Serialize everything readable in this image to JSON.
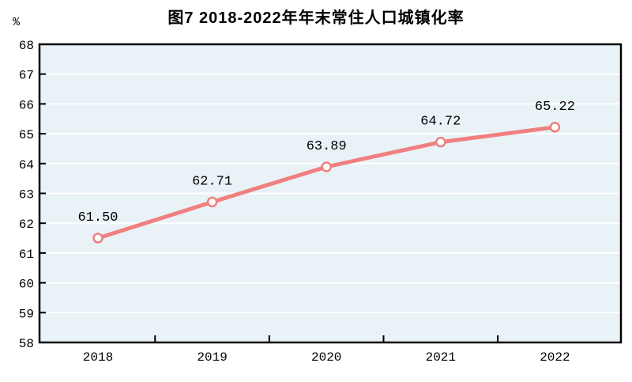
{
  "chart_data": {
    "type": "line",
    "title": "图7  2018-2022年年末常住人口城镇化率",
    "ylabel": "%",
    "xlabel": "",
    "categories": [
      "2018",
      "2019",
      "2020",
      "2021",
      "2022"
    ],
    "series": [
      {
        "name": "年末常住人口城镇化率",
        "values": [
          61.5,
          62.71,
          63.89,
          64.72,
          65.22
        ]
      }
    ],
    "point_labels": [
      "61.50",
      "62.71",
      "63.89",
      "64.72",
      "65.22"
    ],
    "ylim": [
      58,
      68
    ],
    "yticks": [
      58,
      59,
      60,
      61,
      62,
      63,
      64,
      65,
      66,
      67,
      68
    ],
    "grid": "horizontal-white-lines",
    "legend_position": "none",
    "colors": {
      "line": "#f08080",
      "marker_fill": "#ffffff",
      "marker_stroke": "#f08080",
      "plot_background": "#e9f2f6",
      "gridline": "#ffffff",
      "frame": "#000000",
      "text": "#000000"
    }
  }
}
